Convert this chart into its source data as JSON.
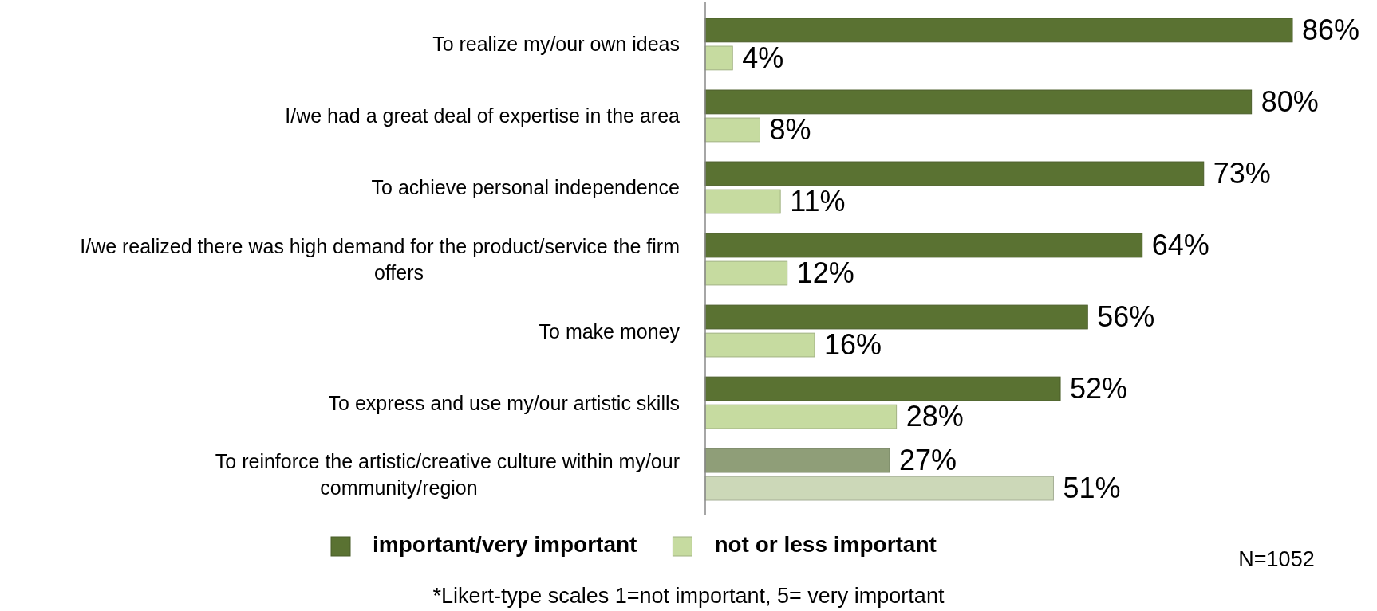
{
  "chart_data": {
    "type": "bar",
    "orientation": "horizontal",
    "legend": "bottom",
    "categories": [
      "To realize my/our own ideas",
      "I/we had a great deal of expertise in the area",
      "To achieve personal independence",
      "I/we realized there was high demand for the product/service the firm offers",
      "To make money",
      "To express and use my/our artistic skills",
      "To reinforce the artistic/creative culture within my/our community/region"
    ],
    "series": [
      {
        "name": "important/very important",
        "color": "#5a7232",
        "colors": [
          "#5a7232",
          "#5a7232",
          "#5a7232",
          "#5a7232",
          "#5a7232",
          "#5a7232",
          "#8f9e78"
        ],
        "values": [
          86,
          80,
          73,
          64,
          56,
          52,
          27
        ],
        "value_labels": [
          "86%",
          "80%",
          "73%",
          "64%",
          "56%",
          "52%",
          "27%"
        ]
      },
      {
        "name": "not or less important",
        "color": "#c6dba0",
        "colors": [
          "#c6dba0",
          "#c6dba0",
          "#c6dba0",
          "#c6dba0",
          "#c6dba0",
          "#c6dba0",
          "#ccd8b8"
        ],
        "values": [
          4,
          8,
          11,
          12,
          16,
          28,
          51
        ],
        "value_labels": [
          "4%",
          "8%",
          "11%",
          "12%",
          "16%",
          "28%",
          "51%"
        ]
      }
    ],
    "annotations": [
      "N=1052",
      "*Likert-type scales 1=not important, 5= very important"
    ]
  }
}
